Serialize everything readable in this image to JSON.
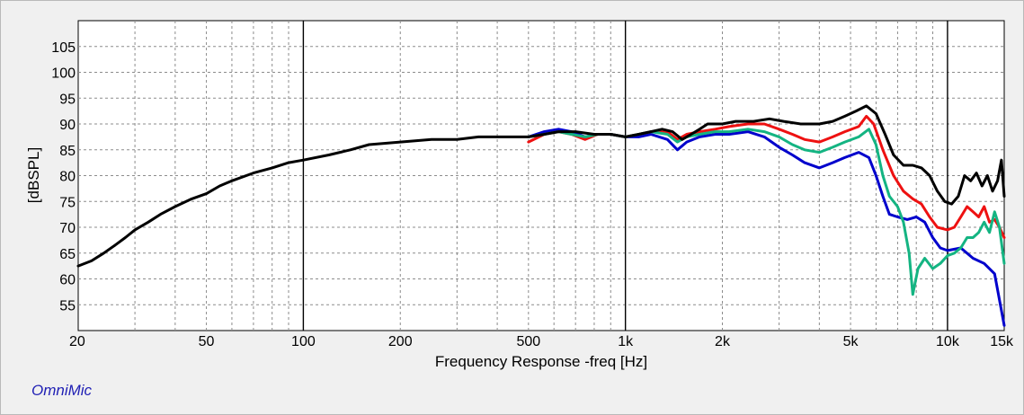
{
  "brand": "OmniMic",
  "chart_data": {
    "type": "line",
    "title": "",
    "xlabel": "Frequency Response -freq [Hz]",
    "ylabel": "[dBSPL]",
    "xscale": "log",
    "xlim": [
      20,
      15000
    ],
    "ylim": [
      50,
      110
    ],
    "grid": true,
    "x_ticks": [
      {
        "value": 20,
        "label": "20"
      },
      {
        "value": 50,
        "label": "50"
      },
      {
        "value": 100,
        "label": "100"
      },
      {
        "value": 200,
        "label": "200"
      },
      {
        "value": 500,
        "label": "500"
      },
      {
        "value": 1000,
        "label": "1k"
      },
      {
        "value": 2000,
        "label": "2k"
      },
      {
        "value": 5000,
        "label": "5k"
      },
      {
        "value": 10000,
        "label": "10k"
      },
      {
        "value": 15000,
        "label": "15k"
      }
    ],
    "y_ticks": [
      55,
      60,
      65,
      70,
      75,
      80,
      85,
      90,
      95,
      100,
      105
    ],
    "series": [
      {
        "color": "#0000cc",
        "points": [
          [
            500,
            87.5
          ],
          [
            560,
            88.5
          ],
          [
            620,
            89
          ],
          [
            680,
            88.5
          ],
          [
            750,
            87.5
          ],
          [
            820,
            88
          ],
          [
            900,
            88
          ],
          [
            1000,
            87.5
          ],
          [
            1100,
            87.5
          ],
          [
            1200,
            88
          ],
          [
            1350,
            87
          ],
          [
            1450,
            85
          ],
          [
            1550,
            86.5
          ],
          [
            1700,
            87.5
          ],
          [
            1900,
            88
          ],
          [
            2100,
            88
          ],
          [
            2400,
            88.5
          ],
          [
            2700,
            87.5
          ],
          [
            3000,
            85.5
          ],
          [
            3300,
            84
          ],
          [
            3600,
            82.5
          ],
          [
            4000,
            81.5
          ],
          [
            4400,
            82.5
          ],
          [
            4800,
            83.5
          ],
          [
            5300,
            84.5
          ],
          [
            5700,
            83.5
          ],
          [
            6000,
            80
          ],
          [
            6300,
            76
          ],
          [
            6600,
            72.5
          ],
          [
            7000,
            72
          ],
          [
            7500,
            71.5
          ],
          [
            8000,
            72
          ],
          [
            8500,
            71
          ],
          [
            9000,
            68
          ],
          [
            9500,
            66
          ],
          [
            10000,
            65.5
          ],
          [
            11000,
            66
          ],
          [
            12000,
            64
          ],
          [
            13000,
            63
          ],
          [
            14000,
            61
          ],
          [
            15000,
            51
          ]
        ]
      },
      {
        "color": "#ee1111",
        "points": [
          [
            500,
            86.5
          ],
          [
            560,
            88
          ],
          [
            620,
            88.5
          ],
          [
            680,
            88
          ],
          [
            750,
            87
          ],
          [
            820,
            88
          ],
          [
            900,
            88
          ],
          [
            1000,
            87.5
          ],
          [
            1100,
            88
          ],
          [
            1200,
            88.5
          ],
          [
            1350,
            88.5
          ],
          [
            1450,
            87
          ],
          [
            1550,
            88
          ],
          [
            1700,
            88.5
          ],
          [
            1900,
            89
          ],
          [
            2100,
            89.5
          ],
          [
            2400,
            90
          ],
          [
            2700,
            90
          ],
          [
            3000,
            89
          ],
          [
            3300,
            88
          ],
          [
            3600,
            87
          ],
          [
            4000,
            86.5
          ],
          [
            4400,
            87.5
          ],
          [
            4800,
            88.5
          ],
          [
            5300,
            89.5
          ],
          [
            5600,
            91.5
          ],
          [
            5900,
            90
          ],
          [
            6300,
            85
          ],
          [
            6800,
            80
          ],
          [
            7300,
            77
          ],
          [
            7800,
            75.5
          ],
          [
            8300,
            74.5
          ],
          [
            8800,
            72
          ],
          [
            9300,
            70
          ],
          [
            10000,
            69.5
          ],
          [
            10500,
            70
          ],
          [
            11000,
            72
          ],
          [
            11500,
            74
          ],
          [
            12000,
            73
          ],
          [
            12500,
            72
          ],
          [
            13000,
            74
          ],
          [
            13500,
            71
          ],
          [
            14000,
            71.5
          ],
          [
            14500,
            70
          ],
          [
            15000,
            68
          ]
        ]
      },
      {
        "color": "#14b482",
        "points": [
          [
            500,
            87.5
          ],
          [
            560,
            88
          ],
          [
            620,
            88.5
          ],
          [
            680,
            88
          ],
          [
            750,
            87.5
          ],
          [
            820,
            88
          ],
          [
            900,
            88
          ],
          [
            1000,
            87.5
          ],
          [
            1100,
            88
          ],
          [
            1200,
            88.5
          ],
          [
            1350,
            88
          ],
          [
            1450,
            86.5
          ],
          [
            1550,
            87.5
          ],
          [
            1700,
            88
          ],
          [
            1900,
            88.5
          ],
          [
            2100,
            88.5
          ],
          [
            2400,
            89
          ],
          [
            2700,
            88.5
          ],
          [
            3000,
            87.5
          ],
          [
            3300,
            86
          ],
          [
            3600,
            85
          ],
          [
            4000,
            84.5
          ],
          [
            4400,
            85.5
          ],
          [
            4800,
            86.5
          ],
          [
            5300,
            87.5
          ],
          [
            5700,
            89
          ],
          [
            6000,
            86
          ],
          [
            6300,
            80
          ],
          [
            6600,
            76
          ],
          [
            7000,
            74
          ],
          [
            7300,
            71
          ],
          [
            7600,
            65
          ],
          [
            7800,
            57
          ],
          [
            8100,
            62
          ],
          [
            8500,
            64
          ],
          [
            9000,
            62
          ],
          [
            9500,
            63
          ],
          [
            10000,
            64.5
          ],
          [
            10500,
            65
          ],
          [
            11000,
            66
          ],
          [
            11500,
            68
          ],
          [
            12000,
            68
          ],
          [
            12500,
            69
          ],
          [
            13000,
            71
          ],
          [
            13500,
            69
          ],
          [
            14000,
            73
          ],
          [
            14500,
            70
          ],
          [
            15000,
            63
          ]
        ]
      },
      {
        "color": "#000000",
        "points": [
          [
            20,
            62.5
          ],
          [
            22,
            63.5
          ],
          [
            24,
            65
          ],
          [
            26,
            66.5
          ],
          [
            28,
            68
          ],
          [
            30,
            69.5
          ],
          [
            33,
            71
          ],
          [
            36,
            72.5
          ],
          [
            40,
            74
          ],
          [
            45,
            75.5
          ],
          [
            50,
            76.5
          ],
          [
            55,
            78
          ],
          [
            60,
            79
          ],
          [
            70,
            80.5
          ],
          [
            80,
            81.5
          ],
          [
            90,
            82.5
          ],
          [
            100,
            83
          ],
          [
            120,
            84
          ],
          [
            140,
            85
          ],
          [
            160,
            86
          ],
          [
            200,
            86.5
          ],
          [
            250,
            87
          ],
          [
            300,
            87
          ],
          [
            350,
            87.5
          ],
          [
            400,
            87.5
          ],
          [
            450,
            87.5
          ],
          [
            500,
            87.5
          ],
          [
            560,
            88
          ],
          [
            620,
            88.5
          ],
          [
            700,
            88.5
          ],
          [
            800,
            88
          ],
          [
            900,
            88
          ],
          [
            1000,
            87.5
          ],
          [
            1100,
            88
          ],
          [
            1200,
            88.5
          ],
          [
            1300,
            89
          ],
          [
            1400,
            88.5
          ],
          [
            1500,
            87
          ],
          [
            1600,
            88
          ],
          [
            1700,
            89
          ],
          [
            1800,
            90
          ],
          [
            2000,
            90
          ],
          [
            2200,
            90.5
          ],
          [
            2500,
            90.5
          ],
          [
            2800,
            91
          ],
          [
            3100,
            90.5
          ],
          [
            3500,
            90
          ],
          [
            4000,
            90
          ],
          [
            4400,
            90.5
          ],
          [
            4800,
            91.5
          ],
          [
            5200,
            92.5
          ],
          [
            5600,
            93.5
          ],
          [
            6000,
            92
          ],
          [
            6400,
            88
          ],
          [
            6800,
            84
          ],
          [
            7300,
            82
          ],
          [
            7800,
            82
          ],
          [
            8300,
            81.5
          ],
          [
            8800,
            80
          ],
          [
            9300,
            77
          ],
          [
            9800,
            75
          ],
          [
            10300,
            74.5
          ],
          [
            10800,
            76
          ],
          [
            11300,
            80
          ],
          [
            11800,
            79
          ],
          [
            12300,
            80.5
          ],
          [
            12800,
            78
          ],
          [
            13300,
            80
          ],
          [
            13800,
            77
          ],
          [
            14300,
            79
          ],
          [
            14700,
            83
          ],
          [
            15000,
            76
          ]
        ]
      }
    ]
  }
}
